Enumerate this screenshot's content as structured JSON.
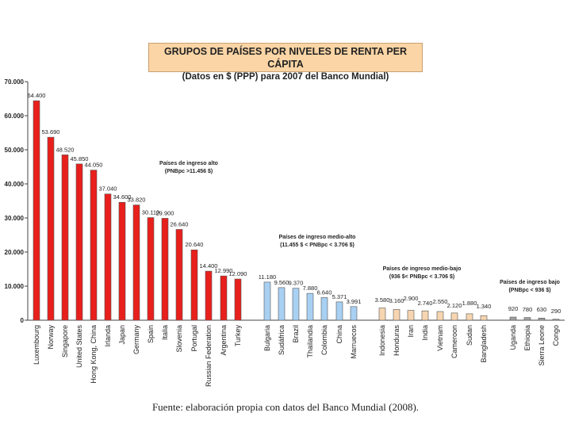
{
  "chart_data": {
    "type": "bar",
    "title": "GRUPOS DE PAÍSES POR NIVELES DE RENTA PER CÁPITA",
    "subtitle": "(Datos en $ (PPP) para 2007 del Banco Mundial)",
    "xlabel": "",
    "ylabel": "",
    "ylim": [
      0,
      70000
    ],
    "yticks": [
      0,
      10000,
      20000,
      30000,
      40000,
      50000,
      60000,
      70000
    ],
    "ytick_labels": [
      "0",
      "10.000",
      "20.000",
      "30.000",
      "40.000",
      "50.000",
      "60.000",
      "70.000"
    ],
    "grid": false,
    "groups": [
      {
        "name": "Países de ingreso alto",
        "label_lines": [
          "Países de ingreso alto",
          "(PNBpc >11.456 $)"
        ],
        "color": "#e8201c",
        "categories": [
          "Luxembourg",
          "Norway",
          "Singapore",
          "United States",
          "Hong Kong, China",
          "Irlanda",
          "Japan",
          "Germany",
          "Spain",
          "Italia",
          "Slovenia",
          "Portugal",
          "Russian Federation",
          "Argentina",
          "Turkey"
        ],
        "values": [
          64400,
          53690,
          48520,
          45850,
          44050,
          37040,
          34600,
          33820,
          30110,
          29900,
          26640,
          20640,
          14400,
          12990,
          12090
        ],
        "value_labels": [
          "64.400",
          "53.690",
          "48.520",
          "45.850",
          "44.050",
          "37.040",
          "34.600",
          "33.820",
          "30.110",
          "29.900",
          "26.640",
          "20.640",
          "14.400",
          "12.990",
          "12.090"
        ]
      },
      {
        "name": "Países de ingreso medio-alto",
        "label_lines": [
          "Países de ingreso medio-alto",
          "(11.455 $ < PNBpc < 3.706 $)"
        ],
        "color": "#a8d0f2",
        "categories": [
          "Bulgaria",
          "Sudáfrica",
          "Brazil",
          "Thailandia",
          "Colombia",
          "China",
          "Marruecos"
        ],
        "values": [
          11180,
          9560,
          9370,
          7880,
          6640,
          5371,
          3991
        ],
        "value_labels": [
          "11.180",
          "9.560",
          "9.370",
          "7.880",
          "6.640",
          "5.371",
          "3.991"
        ]
      },
      {
        "name": "Países de ingreso medio-bajo",
        "label_lines": [
          "Países de ingreso medio-bajo",
          "(936 $< PNBpc < 3.706 $)"
        ],
        "color": "#f6d5b0",
        "categories": [
          "Indonesia",
          "Honduras",
          "Iran",
          "India",
          "Vietnam",
          "Cameroon",
          "Sudan",
          "Bangladesh"
        ],
        "values": [
          3580,
          3160,
          2900,
          2740,
          2550,
          2120,
          1880,
          1340
        ],
        "value_labels": [
          "3.580",
          "3.160",
          "2.900",
          "2.740",
          "2.550",
          "2.120",
          "1.880",
          "1.340"
        ]
      },
      {
        "name": "Países de ingreso bajo",
        "label_lines": [
          "Países de ingreso bajo",
          "(PNBpc < 936 $)"
        ],
        "color": "#a0a0a0",
        "categories": [
          "Uganda",
          "Ethiopia",
          "Sierra Leone",
          "Congo"
        ],
        "values": [
          920,
          780,
          630,
          290
        ],
        "value_labels": [
          "920",
          "780",
          "630",
          "290"
        ]
      }
    ]
  },
  "source": "Fuente: elaboración propia con datos del Banco Mundial (2008)."
}
